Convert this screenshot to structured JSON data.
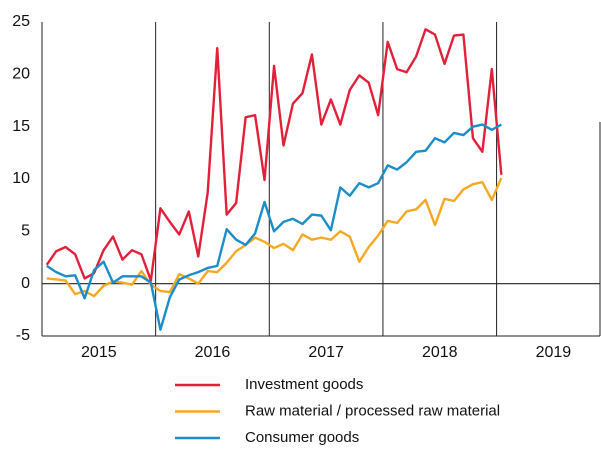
{
  "chart_data": {
    "type": "line",
    "x": [
      2015.042,
      2015.125,
      2015.208,
      2015.292,
      2015.375,
      2015.458,
      2015.542,
      2015.625,
      2015.708,
      2015.792,
      2015.875,
      2015.958,
      2016.042,
      2016.125,
      2016.208,
      2016.292,
      2016.375,
      2016.458,
      2016.542,
      2016.625,
      2016.708,
      2016.792,
      2016.875,
      2016.958,
      2017.042,
      2017.125,
      2017.208,
      2017.292,
      2017.375,
      2017.458,
      2017.542,
      2017.625,
      2017.708,
      2017.792,
      2017.875,
      2017.958,
      2018.042,
      2018.125,
      2018.208,
      2018.292,
      2018.375,
      2018.458,
      2018.542,
      2018.625,
      2018.708,
      2018.792,
      2018.875,
      2018.958,
      2019.042
    ],
    "series": [
      {
        "name": "Investment goods",
        "color": "#e3203a",
        "values": [
          1.8,
          3.1,
          3.5,
          2.8,
          0.5,
          1.0,
          3.2,
          4.5,
          2.3,
          3.2,
          2.8,
          0.3,
          7.2,
          5.9,
          4.7,
          6.9,
          2.6,
          8.7,
          22.5,
          6.6,
          7.7,
          15.9,
          16.1,
          9.9,
          20.8,
          13.2,
          17.2,
          18.2,
          21.9,
          15.2,
          17.6,
          15.2,
          18.5,
          19.9,
          19.2,
          16.1,
          23.1,
          20.5,
          20.2,
          21.7,
          24.3,
          23.8,
          21.0,
          23.7,
          23.8,
          13.9,
          12.6,
          20.5,
          10.4
        ]
      },
      {
        "name": "Raw material / processed raw material",
        "color": "#f7a823",
        "values": [
          0.5,
          0.4,
          0.3,
          -1.0,
          -0.7,
          -1.2,
          -0.2,
          0.2,
          0.1,
          -0.1,
          1.2,
          -0.1,
          -0.7,
          -0.8,
          0.9,
          0.5,
          0.0,
          1.2,
          1.1,
          2.0,
          3.1,
          3.7,
          4.4,
          4.0,
          3.4,
          3.8,
          3.2,
          4.7,
          4.2,
          4.4,
          4.2,
          5.0,
          4.5,
          2.1,
          3.5,
          4.6,
          6.0,
          5.8,
          6.9,
          7.1,
          8.0,
          5.6,
          8.1,
          7.9,
          9.0,
          9.5,
          9.7,
          8.0,
          10.1
        ]
      },
      {
        "name": "Consumer goods",
        "color": "#1b8dc9",
        "values": [
          1.7,
          1.1,
          0.7,
          0.8,
          -1.4,
          1.3,
          2.1,
          0.1,
          0.7,
          0.7,
          0.7,
          0.1,
          -4.4,
          -1.3,
          0.4,
          0.8,
          1.1,
          1.5,
          1.7,
          5.2,
          4.2,
          3.7,
          4.8,
          7.8,
          5.0,
          5.9,
          6.2,
          5.7,
          6.6,
          6.5,
          5.1,
          9.2,
          8.4,
          9.6,
          9.2,
          9.6,
          11.3,
          10.9,
          11.6,
          12.6,
          12.7,
          13.9,
          13.5,
          14.4,
          14.2,
          15.0,
          15.2,
          14.7,
          15.2
        ]
      }
    ],
    "xlim": [
      2015,
      2019.91
    ],
    "xticks": [
      2015,
      2016,
      2017,
      2018,
      2019
    ],
    "ylim": [
      -5,
      25
    ],
    "yticks": [
      -5,
      0,
      5,
      10,
      15,
      20,
      25
    ]
  }
}
